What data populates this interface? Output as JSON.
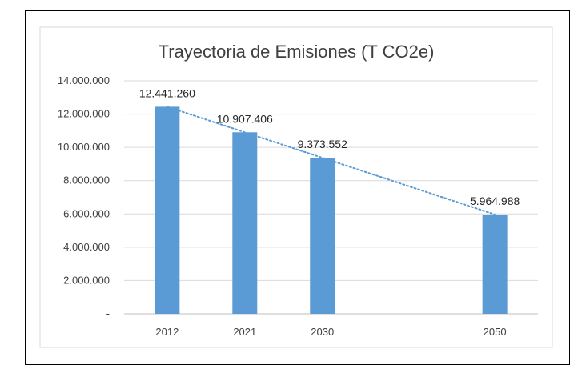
{
  "chart_data": {
    "type": "bar",
    "title": "Trayectoria de Emisiones (T CO2e)",
    "xlabel": "",
    "ylabel": "",
    "categories": [
      "2012",
      "2021",
      "2030",
      "2050"
    ],
    "x": [
      2012,
      2021,
      2030,
      2050
    ],
    "values": [
      12441260,
      10907406,
      9373552,
      5964988
    ],
    "data_labels": [
      "12.441.260",
      "10.907.406",
      "9.373.552",
      "5.964.988"
    ],
    "ylim": [
      0,
      14000000
    ],
    "yticks": [
      0,
      2000000,
      4000000,
      6000000,
      8000000,
      10000000,
      12000000,
      14000000
    ],
    "ytick_labels": [
      "-",
      "2.000.000",
      "4.000.000",
      "6.000.000",
      "8.000.000",
      "10.000.000",
      "12.000.000",
      "14.000.000"
    ],
    "trendline": "linear, dotted",
    "grid": true,
    "legend": "none",
    "colors": {
      "bar": "#5b9bd5",
      "trendline": "#5b9bd5",
      "grid": "#d9d9d9",
      "border": "#d9d9d9"
    }
  }
}
